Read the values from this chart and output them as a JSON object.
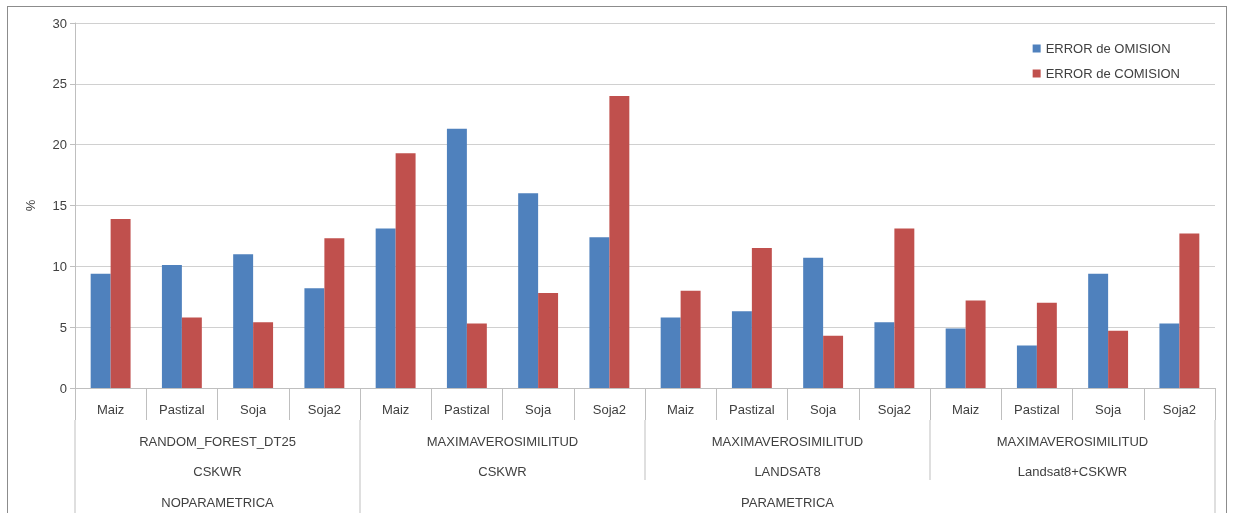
{
  "chart_data": {
    "type": "bar",
    "ylabel": "%",
    "categories": [
      "Maiz",
      "Pastizal",
      "Soja",
      "Soja2",
      "Maiz",
      "Pastizal",
      "Soja",
      "Soja2",
      "Maiz",
      "Pastizal",
      "Soja",
      "Soja2",
      "Maiz",
      "Pastizal",
      "Soja",
      "Soja2"
    ],
    "series": [
      {
        "name": "ERROR de OMISION",
        "color": "#4f81bd",
        "values": [
          9.4,
          10.1,
          11.0,
          8.2,
          13.1,
          21.3,
          16.0,
          12.4,
          5.8,
          6.3,
          10.7,
          5.4,
          4.9,
          3.5,
          9.4,
          5.3
        ]
      },
      {
        "name": "ERROR de COMISION",
        "color": "#c0504d",
        "values": [
          13.9,
          5.8,
          5.4,
          12.3,
          19.3,
          5.3,
          7.8,
          24.0,
          8.0,
          11.5,
          4.3,
          13.1,
          7.2,
          7.0,
          4.7,
          12.7
        ]
      }
    ],
    "ylim": [
      0,
      30
    ],
    "yticks": [
      0,
      5,
      10,
      15,
      20,
      25,
      30
    ],
    "grid": "y",
    "legend": "top right",
    "annotations": [
      "RANDOM_FOREST_DT25",
      "MAXIMAVEROSIMILITUD",
      "MAXIMAVEROSIMILITUD",
      "MAXIMAVEROSIMILITUD",
      "CSKWR",
      "CSKWR",
      "LANDSAT8",
      "Landsat8+CSKWR",
      "NOPARAMETRICA",
      "PARAMETRICA"
    ]
  }
}
